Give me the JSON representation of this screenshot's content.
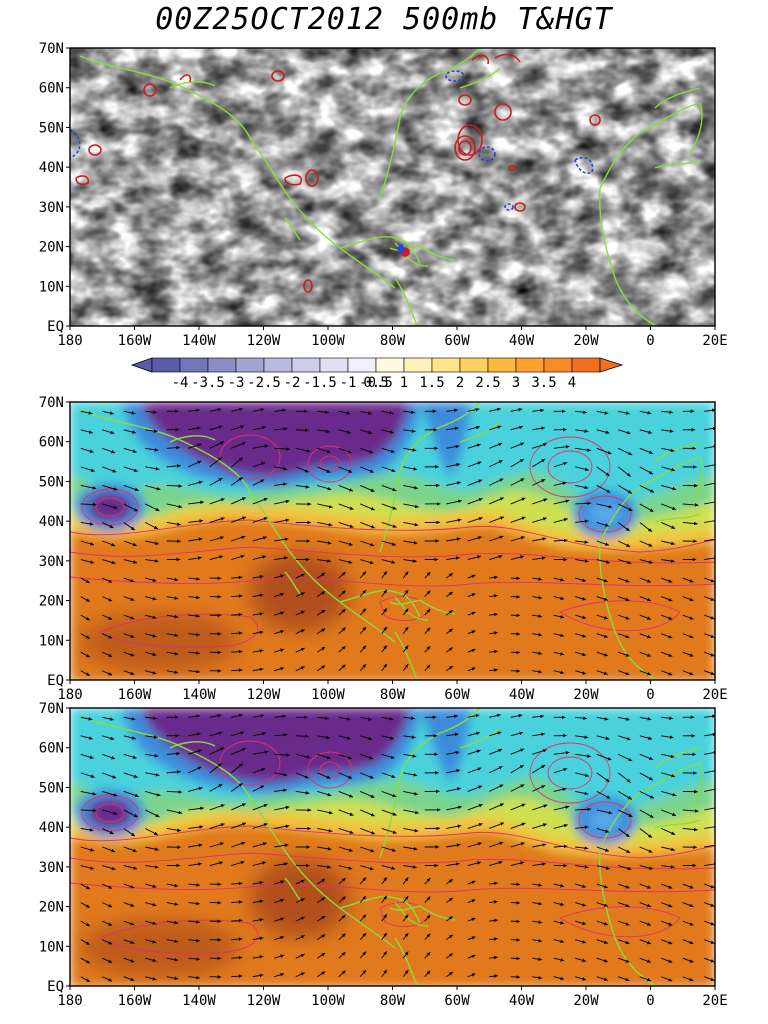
{
  "title": "00Z25OCT2012 500mb T&HGT",
  "axes": {
    "lat_labels": [
      "70N",
      "60N",
      "50N",
      "40N",
      "30N",
      "20N",
      "10N",
      "EQ"
    ],
    "lon_labels": [
      "180",
      "160W",
      "140W",
      "120W",
      "100W",
      "80W",
      "60W",
      "40W",
      "20W",
      "0",
      "20E"
    ]
  },
  "colorbar": {
    "labels": [
      "-4",
      "-3.5",
      "-3",
      "-2.5",
      "-2",
      "-1.5",
      "-1",
      "-0.5",
      "0.5",
      "1",
      "1.5",
      "2",
      "2.5",
      "3",
      "3.5",
      "4"
    ],
    "colors": [
      "#5c5ca8",
      "#7474b8",
      "#8c8cc6",
      "#a4a4d4",
      "#babae0",
      "#ceceea",
      "#e0e0f2",
      "#f0f0fa",
      "#fffbe0",
      "#fff2b8",
      "#ffe48a",
      "#ffd060",
      "#ffb840",
      "#ffa030",
      "#f88a28",
      "#f07020"
    ]
  },
  "panels": [
    {
      "name": "difference",
      "type": "anomaly"
    },
    {
      "name": "analysis-1",
      "type": "field"
    },
    {
      "name": "analysis-2",
      "type": "field"
    }
  ],
  "colors": {
    "coast": "#8adc3c",
    "warm_contour": "#c81e1e",
    "cold_contour": "#2846d2",
    "height_contour": "#e0306e",
    "arrow": "#000000"
  }
}
